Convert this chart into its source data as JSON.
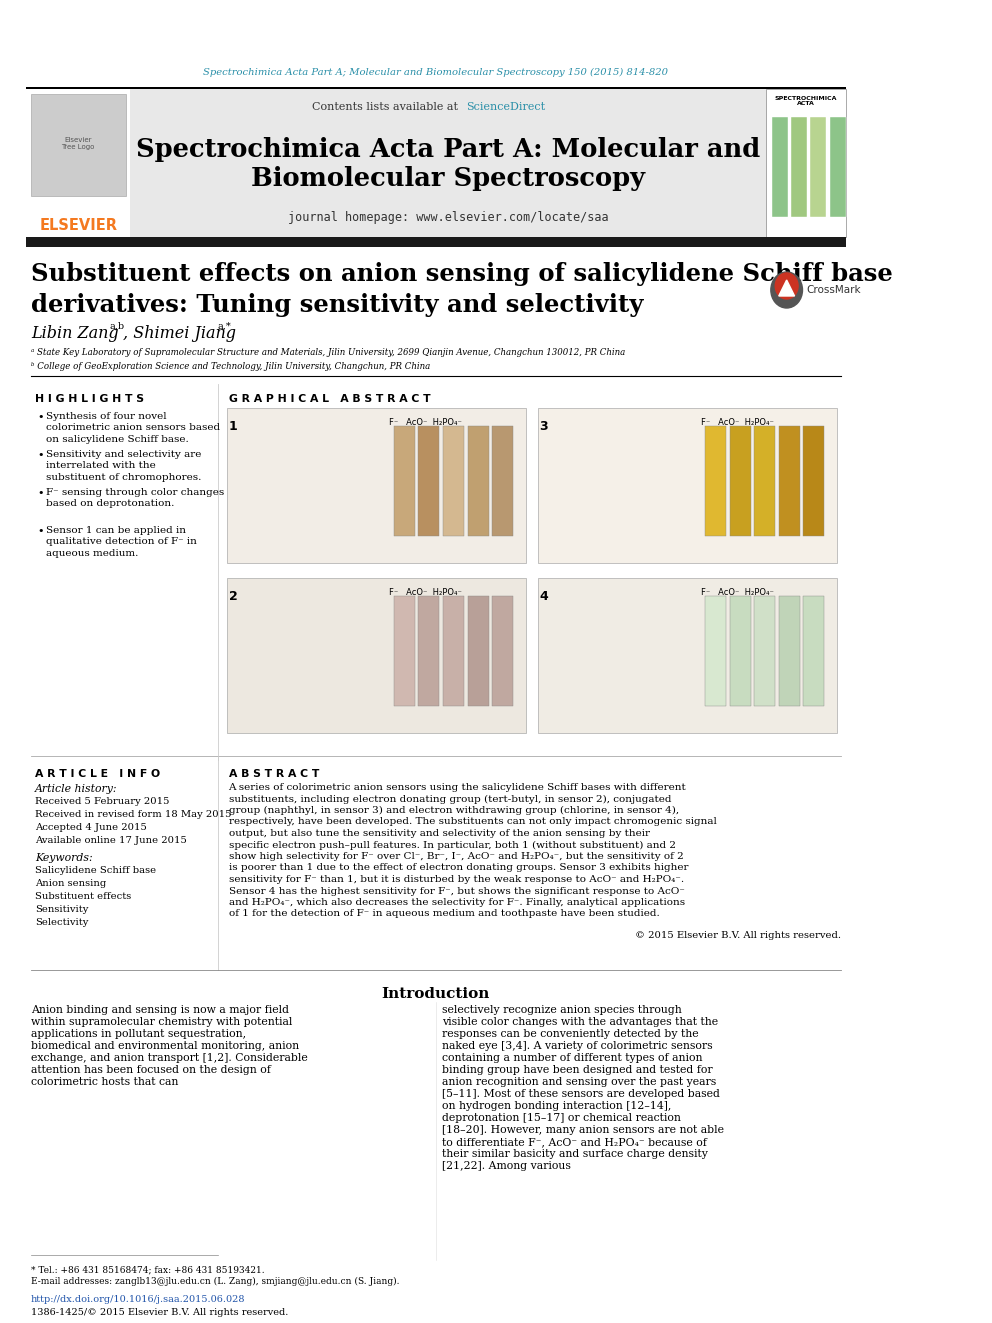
{
  "page_bg": "#ffffff",
  "top_url_text": "Spectrochimica Acta Part A; Molecular and Biomolecular Spectroscopy 150 (2015) 814-820",
  "top_url_color": "#2a8fa8",
  "header_bg": "#e8e8e8",
  "journal_title": "Spectrochimica Acta Part A: Molecular and\nBiomolecular Spectroscopy",
  "journal_title_color": "#000000",
  "contents_text": "Contents lists available at ",
  "science_direct": "ScienceDirect",
  "science_direct_color": "#2a8fa8",
  "homepage_text": "journal homepage: www.elsevier.com/locate/saa",
  "elsevier_color": "#f47920",
  "black_bar_color": "#1a1a1a",
  "article_title": "Substituent effects on anion sensing of salicylidene Schiff base\nderivatives: Tuning sensitivity and selectivity",
  "affiliation_a": "ᵃ State Key Laboratory of Supramolecular Structure and Materials, Jilin University, 2699 Qianjin Avenue, Changchun 130012, PR China",
  "affiliation_b": "ᵇ College of GeoExploration Science and Technology, Jilin University, Changchun, PR China",
  "highlights_title": "H I G H L I G H T S",
  "highlights": [
    "Synthesis of four novel colorimetric anion sensors based on salicylidene Schiff base.",
    "Sensitivity and selectivity are interrelated with the substituent of chromophores.",
    "F⁻ sensing through color changes based on deprotonation.",
    "Sensor 1 can be applied in qualitative detection of F⁻ in aqueous medium."
  ],
  "graphical_abstract_title": "G R A P H I C A L   A B S T R A C T",
  "article_info_title": "A R T I C L E   I N F O",
  "article_history_title": "Article history:",
  "received": "Received 5 February 2015",
  "received_revised": "Received in revised form 18 May 2015",
  "accepted": "Accepted 4 June 2015",
  "available": "Available online 17 June 2015",
  "keywords_title": "Keywords:",
  "keywords": [
    "Salicylidene Schiff base",
    "Anion sensing",
    "Substituent effects",
    "Sensitivity",
    "Selectivity"
  ],
  "abstract_title": "A B S T R A C T",
  "abstract_text": "A series of colorimetric anion sensors using the salicylidene Schiff bases with different substituents, including electron donating group (tert-butyl, in sensor 2), conjugated group (naphthyl, in sensor 3) and electron withdrawing group (chlorine, in sensor 4), respectively, have been developed. The substituents can not only impact chromogenic signal output, but also tune the sensitivity and selectivity of the anion sensing by their specific electron push–pull features. In particular, both 1 (without substituent) and 2 show high selectivity for F⁻ over Cl⁻, Br⁻, I⁻, AcO⁻ and H₂PO₄⁻, but the sensitivity of 2 is poorer than 1 due to the effect of electron donating groups. Sensor 3 exhibits higher sensitivity for F⁻ than 1, but it is disturbed by the weak response to AcO⁻ and H₂PO₄⁻. Sensor 4 has the highest sensitivity for F⁻, but shows the significant response to AcO⁻ and H₂PO₄⁻, which also decreases the selectivity for F⁻. Finally, analytical applications of 1 for the detection of F⁻ in aqueous medium and toothpaste have been studied.",
  "copyright_text": "© 2015 Elsevier B.V. All rights reserved.",
  "intro_title": "Introduction",
  "intro_col1": "Anion binding and sensing is now a major field within supramolecular chemistry with potential applications in pollutant sequestration, biomedical and environmental monitoring, anion exchange, and anion transport [1,2]. Considerable attention has been focused on the design of colorimetric hosts that can",
  "intro_col2": "selectively recognize anion species through visible color changes with the advantages that the responses can be conveniently detected by the naked eye [3,4]. A variety of colorimetric sensors containing a number of different types of anion binding group have been designed and tested for anion recognition and sensing over the past years [5–11]. Most of these sensors are developed based on hydrogen bonding interaction [12–14], deprotonation [15–17] or chemical reaction [18–20]. However, many anion sensors are not able to differentiate F⁻, AcO⁻ and H₂PO₄⁻ because of their similar basicity and surface charge density [21,22]. Among various",
  "footnote_star": "* Tel.: +86 431 85168474; fax: +86 431 85193421.",
  "footnote_email": "E-mail addresses: zanglb13@jlu.edu.cn (L. Zang), smjiang@jlu.edu.cn (S. Jiang).",
  "doi_text": "http://dx.doi.org/10.1016/j.saa.2015.06.028",
  "issn_text": "1386-1425/© 2015 Elsevier B.V. All rights reserved."
}
